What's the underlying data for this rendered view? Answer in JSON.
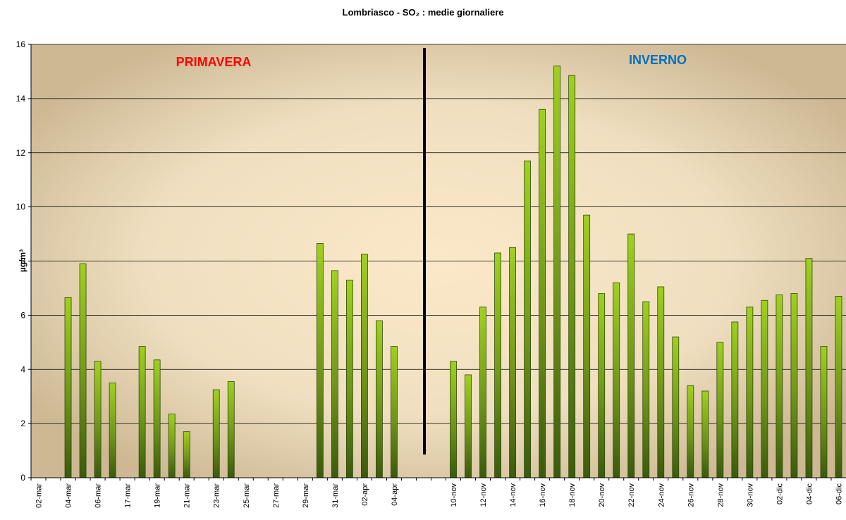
{
  "chart_data": {
    "type": "bar",
    "title": "Lombriasco - SO₂ : medie giornaliere",
    "y_label": "µg/m³",
    "annotations": [
      {
        "text": "PRIMAVERA",
        "color": "#ff0000"
      },
      {
        "text": "INVERNO",
        "color": "#0070c0"
      }
    ],
    "categories": [
      "02-mar",
      null,
      "04-mar",
      null,
      "06-mar",
      null,
      "17-mar",
      null,
      "19-mar",
      null,
      "21-mar",
      null,
      "23-mar",
      null,
      "25-mar",
      null,
      "27-mar",
      null,
      "29-mar",
      null,
      "31-mar",
      null,
      "02-apr",
      null,
      "04-apr",
      null,
      null,
      null,
      "10-nov",
      null,
      "12-nov",
      null,
      "14-nov",
      null,
      "16-nov",
      null,
      "18-nov",
      null,
      "20-nov",
      null,
      "22-nov",
      null,
      "24-nov",
      null,
      "26-nov",
      null,
      "28-nov",
      null,
      "30-nov",
      null,
      "02-dic",
      null,
      "04-dic",
      null,
      "06-dic"
    ],
    "values": [
      null,
      null,
      6.65,
      7.9,
      4.3,
      3.5,
      null,
      4.85,
      4.35,
      2.35,
      1.7,
      null,
      3.25,
      3.55,
      null,
      null,
      null,
      null,
      null,
      8.65,
      7.65,
      7.3,
      8.25,
      5.8,
      4.85,
      null,
      null,
      null,
      4.3,
      3.8,
      6.3,
      8.3,
      8.5,
      11.7,
      13.6,
      15.2,
      14.85,
      9.7,
      6.8,
      7.2,
      9.0,
      6.5,
      7.05,
      5.2,
      3.4,
      3.2,
      5.0,
      5.75,
      6.3,
      6.55,
      6.75,
      6.8,
      8.1,
      4.85,
      6.7
    ],
    "color": "#8fc31f",
    "ylim": [
      0,
      16
    ],
    "yticks": [
      0,
      2,
      4,
      6,
      8,
      10,
      12,
      14,
      16
    ],
    "grid": true
  }
}
